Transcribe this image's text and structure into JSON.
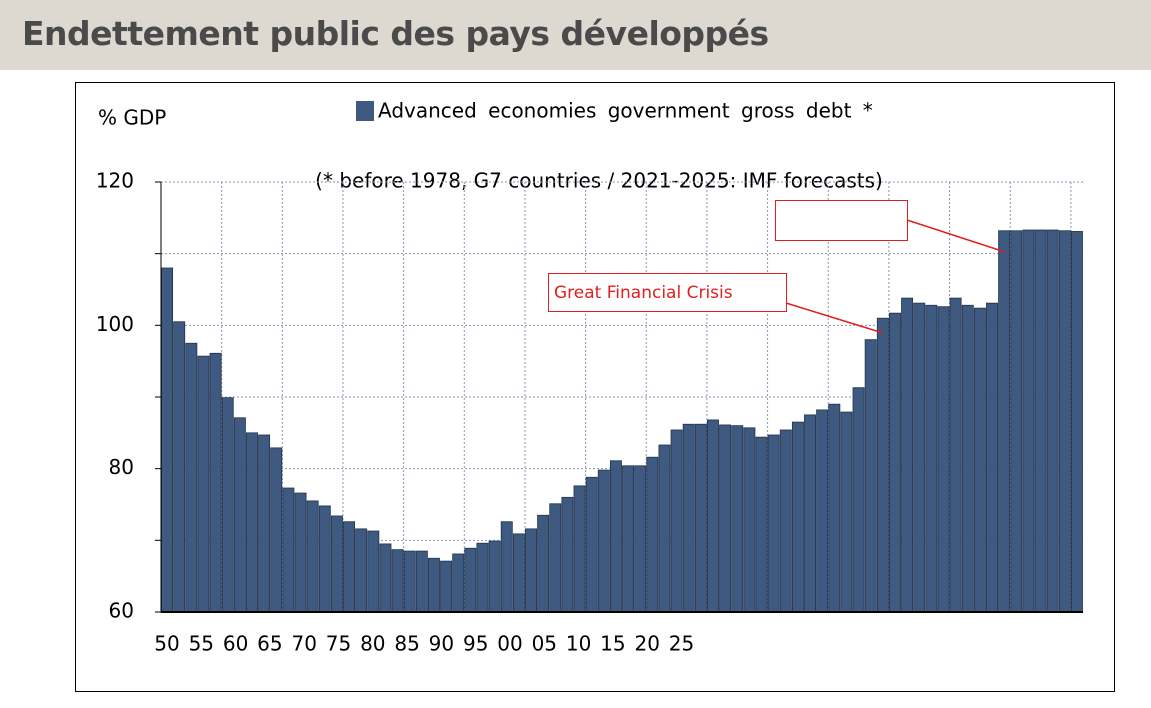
{
  "header": {
    "title": "Endettement public des pays développés"
  },
  "chart_data": {
    "type": "bar",
    "y_label": "% GDP",
    "subtitle": "(* before 1978, G7 countries / 2021-2025: IMF forecasts)",
    "annotations": [
      "Great Financial Crisis"
    ],
    "series": [
      {
        "name": "Advanced economies government gross debt *",
        "color": "#3f5a81",
        "values": [
          108.0,
          100.5,
          97.5,
          95.7,
          96.1,
          89.9,
          87.1,
          85.0,
          84.7,
          82.9,
          77.3,
          76.6,
          75.5,
          74.8,
          73.4,
          72.6,
          71.6,
          71.3,
          69.5,
          68.7,
          68.5,
          68.5,
          67.5,
          67.1,
          68.1,
          68.9,
          69.6,
          69.9,
          72.6,
          70.9,
          71.6,
          73.5,
          75.1,
          76.0,
          77.6,
          78.8,
          79.8,
          81.1,
          80.4,
          80.4,
          81.6,
          83.3,
          85.4,
          86.2,
          86.2,
          86.8,
          86.1,
          86.0,
          85.7,
          84.4,
          84.7,
          85.4,
          86.5,
          87.5,
          88.2,
          89.0,
          87.9,
          91.3,
          98.0,
          101.0,
          101.7,
          103.8,
          103.1,
          102.8,
          102.6,
          103.8,
          102.8,
          102.4,
          103.1,
          113.2,
          113.2,
          113.3,
          113.3,
          113.3,
          113.2,
          113.1
        ]
      }
    ],
    "ylim": [
      60,
      120
    ],
    "yticks": [
      60,
      80,
      100,
      120
    ],
    "ygrid": [
      60,
      70,
      80,
      90,
      100,
      110,
      120
    ],
    "grid": true,
    "xtick_labels": [
      "50",
      "55",
      "60",
      "65",
      "70",
      "75",
      "80",
      "85",
      "90",
      "95",
      "00",
      "05",
      "10",
      "15",
      "20",
      "25"
    ]
  }
}
